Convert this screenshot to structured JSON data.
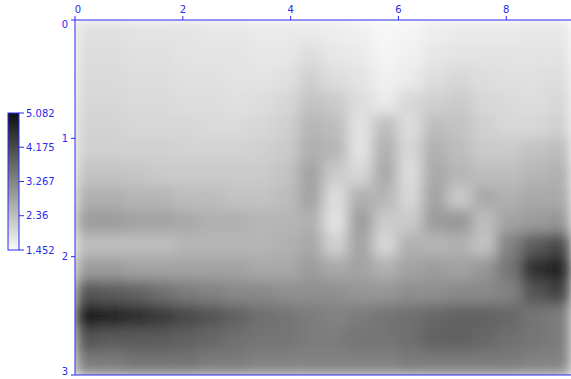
{
  "chart_data": {
    "type": "heatmap",
    "x": [
      0.23,
      0.69,
      1.15,
      1.61,
      2.07,
      2.53,
      2.99,
      3.45,
      3.91,
      4.37,
      4.83,
      5.29,
      5.75,
      6.21,
      6.67,
      7.13,
      7.59,
      8.05,
      8.51,
      8.97
    ],
    "y": [
      0.1,
      0.3,
      0.5,
      0.7,
      0.9,
      1.1,
      1.3,
      1.5,
      1.7,
      1.9,
      2.1,
      2.3,
      2.5,
      2.7,
      2.9
    ],
    "values": [
      [
        1.85,
        1.85,
        1.8,
        1.8,
        1.8,
        1.75,
        1.75,
        1.7,
        1.7,
        1.7,
        1.65,
        1.6,
        1.5,
        1.55,
        1.65,
        1.7,
        1.7,
        1.7,
        1.75,
        1.75
      ],
      [
        1.9,
        1.9,
        1.85,
        1.85,
        1.8,
        1.8,
        1.8,
        1.75,
        1.75,
        1.9,
        1.75,
        1.7,
        1.55,
        1.6,
        1.75,
        1.8,
        1.8,
        1.8,
        1.8,
        1.8
      ],
      [
        1.95,
        1.95,
        1.9,
        1.9,
        1.85,
        1.85,
        1.8,
        1.8,
        1.85,
        2.1,
        1.9,
        1.8,
        1.6,
        1.7,
        1.9,
        2.0,
        1.9,
        1.85,
        1.85,
        1.9
      ],
      [
        2.0,
        2.0,
        1.95,
        1.95,
        1.9,
        1.9,
        1.85,
        1.9,
        2.0,
        2.3,
        2.2,
        1.9,
        1.7,
        2.0,
        2.1,
        2.2,
        2.0,
        1.95,
        1.9,
        2.0
      ],
      [
        2.05,
        2.05,
        2.0,
        2.0,
        2.0,
        1.95,
        1.95,
        2.0,
        2.1,
        2.5,
        2.4,
        1.8,
        2.4,
        1.9,
        2.4,
        2.3,
        2.1,
        2.0,
        2.0,
        2.1
      ],
      [
        2.1,
        2.1,
        2.1,
        2.1,
        2.05,
        2.05,
        2.05,
        2.1,
        2.2,
        2.6,
        2.5,
        1.8,
        2.6,
        2.0,
        2.6,
        2.4,
        2.2,
        2.2,
        2.3,
        2.4
      ],
      [
        2.3,
        2.3,
        2.25,
        2.2,
        2.2,
        2.2,
        2.2,
        2.2,
        2.3,
        2.8,
        2.2,
        2.0,
        2.7,
        1.9,
        2.7,
        2.5,
        2.4,
        2.4,
        2.5,
        2.6
      ],
      [
        2.6,
        2.6,
        2.5,
        2.5,
        2.4,
        2.4,
        2.3,
        2.3,
        2.4,
        2.8,
        1.9,
        2.6,
        2.5,
        2.0,
        2.8,
        2.2,
        2.7,
        2.6,
        2.7,
        2.7
      ],
      [
        2.9,
        2.9,
        2.8,
        2.8,
        2.7,
        2.6,
        2.6,
        2.5,
        2.5,
        2.6,
        1.8,
        2.9,
        2.2,
        2.2,
        2.9,
        3.0,
        2.4,
        2.8,
        2.9,
        3.0
      ],
      [
        2.4,
        2.4,
        2.4,
        2.4,
        2.5,
        2.5,
        2.5,
        2.5,
        2.6,
        2.7,
        2.1,
        2.8,
        2.0,
        2.6,
        2.5,
        2.6,
        2.3,
        3.3,
        3.9,
        4.2
      ],
      [
        2.9,
        2.9,
        2.8,
        2.8,
        2.8,
        2.8,
        2.8,
        2.7,
        2.7,
        2.9,
        2.7,
        2.8,
        2.6,
        2.8,
        2.9,
        2.8,
        3.0,
        3.5,
        4.6,
        4.8
      ],
      [
        4.0,
        3.9,
        3.8,
        3.6,
        3.4,
        3.3,
        3.2,
        3.2,
        3.1,
        3.1,
        3.1,
        3.0,
        3.0,
        3.1,
        3.1,
        3.2,
        3.2,
        3.3,
        4.0,
        4.3
      ],
      [
        4.9,
        4.8,
        4.6,
        4.4,
        4.2,
        4.0,
        3.8,
        3.6,
        3.5,
        3.4,
        3.3,
        3.4,
        3.5,
        3.6,
        3.7,
        3.8,
        3.8,
        3.7,
        3.5,
        3.4
      ],
      [
        4.0,
        3.9,
        3.9,
        3.9,
        3.8,
        3.7,
        3.6,
        3.5,
        3.5,
        3.4,
        3.4,
        3.5,
        3.5,
        3.6,
        3.8,
        3.8,
        3.7,
        3.6,
        3.5,
        3.4
      ],
      [
        3.4,
        3.4,
        3.5,
        3.5,
        3.5,
        3.4,
        3.4,
        3.3,
        3.3,
        3.3,
        3.3,
        3.3,
        3.3,
        3.4,
        3.4,
        3.4,
        3.4,
        3.4,
        3.3,
        3.3
      ]
    ],
    "xlim": [
      0,
      9.2
    ],
    "ylim": [
      0,
      3
    ],
    "xticks": [
      0,
      2,
      4,
      6,
      8
    ],
    "yticks": [
      0,
      1,
      2,
      3
    ],
    "colorbar": {
      "range": [
        1.452,
        5.082
      ],
      "ticks": [
        1.452,
        2.36,
        3.267,
        4.175,
        5.082
      ]
    }
  }
}
